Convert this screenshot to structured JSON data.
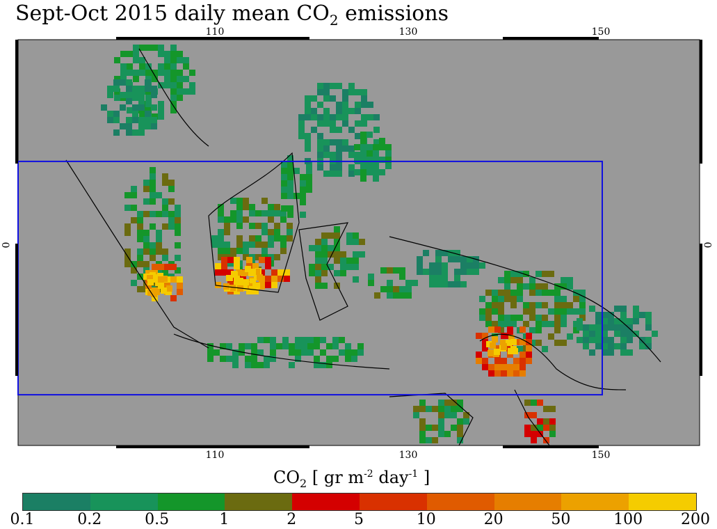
{
  "title": {
    "main": "Sept-Oct 2015 daily mean CO",
    "sub": "2",
    "tail": " emissions"
  },
  "chart_data": {
    "type": "heatmap",
    "lon_ticks": [
      "110",
      "130",
      "150"
    ],
    "lat_ticks": [
      "0"
    ],
    "lon_range": [
      90,
      160
    ],
    "lat_range": [
      -20,
      20
    ],
    "region_box": {
      "lon": [
        90,
        150
      ],
      "lat": [
        -15,
        8
      ]
    },
    "colorbar": {
      "label_main": "CO",
      "label_sub": "2",
      "label_units": "  [ gr m",
      "label_exp1": "-2",
      "label_mid": " day",
      "label_exp2": "-1",
      "label_end": " ]",
      "ticks": [
        "0.1",
        "0.2",
        "0.5",
        "1",
        "2",
        "5",
        "10",
        "20",
        "50",
        "100",
        "200"
      ],
      "colors": [
        "#1b7f64",
        "#18935a",
        "#14962a",
        "#6b6b10",
        "#d40000",
        "#d93100",
        "#e05b00",
        "#e67e00",
        "#eca100",
        "#f5cc00"
      ]
    },
    "background_color": "#999999",
    "box_color": "#1010e0"
  }
}
